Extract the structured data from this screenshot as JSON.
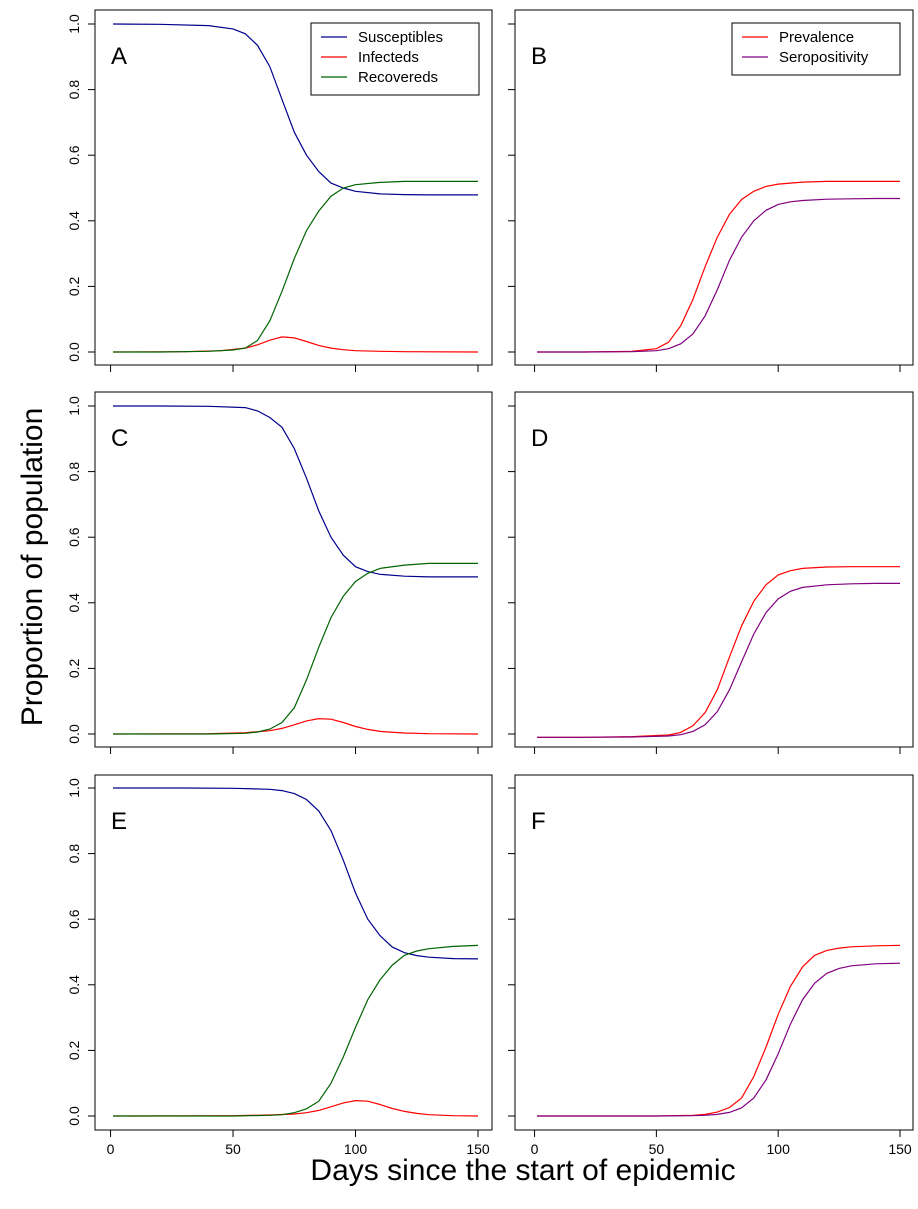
{
  "figure": {
    "xlabel": "Days since the start of epidemic",
    "ylabel": "Proportion of population"
  },
  "colors": {
    "susceptibles": "#00008b",
    "infecteds": "#ff0000",
    "recovereds": "#006400",
    "prevalence": "#ff0000",
    "seropositivity": "#800080"
  },
  "chart_data": [
    {
      "type": "line",
      "letter": "A",
      "xlim": [
        1,
        150
      ],
      "ylim": [
        0,
        1
      ],
      "xticks": [
        0,
        50,
        100,
        150
      ],
      "yticks": [
        0,
        0.2,
        0.4,
        0.6,
        0.8,
        1
      ],
      "xtick_labels": [],
      "ytick_labels": [
        "0.0",
        "0.2",
        "0.4",
        "0.6",
        "0.8",
        "1.0"
      ],
      "legend": "top-right",
      "series": [
        {
          "name": "Susceptibles",
          "key": "susceptibles",
          "x": [
            1,
            20,
            40,
            50,
            55,
            60,
            65,
            70,
            75,
            80,
            85,
            90,
            95,
            100,
            110,
            120,
            130,
            140,
            150
          ],
          "y": [
            1.0,
            0.999,
            0.995,
            0.985,
            0.97,
            0.935,
            0.87,
            0.77,
            0.67,
            0.6,
            0.55,
            0.515,
            0.5,
            0.49,
            0.482,
            0.48,
            0.479,
            0.479,
            0.479
          ]
        },
        {
          "name": "Infecteds",
          "key": "infecteds",
          "x": [
            1,
            30,
            45,
            55,
            60,
            65,
            70,
            75,
            80,
            85,
            90,
            95,
            100,
            110,
            120,
            150
          ],
          "y": [
            0,
            0.001,
            0.004,
            0.012,
            0.022,
            0.036,
            0.046,
            0.043,
            0.032,
            0.02,
            0.012,
            0.007,
            0.004,
            0.002,
            0.001,
            0
          ]
        },
        {
          "name": "Recovereds",
          "key": "recovereds",
          "x": [
            1,
            20,
            40,
            50,
            55,
            60,
            65,
            70,
            75,
            80,
            85,
            90,
            95,
            100,
            110,
            120,
            130,
            140,
            150
          ],
          "y": [
            0,
            0.0,
            0.002,
            0.006,
            0.012,
            0.035,
            0.095,
            0.185,
            0.285,
            0.37,
            0.43,
            0.475,
            0.5,
            0.51,
            0.517,
            0.52,
            0.52,
            0.52,
            0.52
          ]
        }
      ]
    },
    {
      "type": "line",
      "letter": "B",
      "xlim": [
        1,
        150
      ],
      "ylim": [
        0,
        1
      ],
      "xticks": [
        0,
        50,
        100,
        150
      ],
      "yticks": [
        0,
        0.2,
        0.4,
        0.6,
        0.8,
        1
      ],
      "xtick_labels": [],
      "ytick_labels": [],
      "legend": "top-right",
      "series": [
        {
          "name": "Prevalence",
          "key": "prevalence",
          "x": [
            1,
            20,
            40,
            50,
            55,
            60,
            65,
            70,
            75,
            80,
            85,
            90,
            95,
            100,
            110,
            120,
            130,
            140,
            150
          ],
          "y": [
            0,
            0.0,
            0.002,
            0.01,
            0.03,
            0.08,
            0.16,
            0.26,
            0.35,
            0.42,
            0.465,
            0.49,
            0.505,
            0.512,
            0.518,
            0.52,
            0.52,
            0.52,
            0.52
          ]
        },
        {
          "name": "Seropositivity",
          "key": "seropositivity",
          "x": [
            1,
            20,
            40,
            50,
            55,
            60,
            65,
            70,
            75,
            80,
            85,
            90,
            95,
            100,
            105,
            110,
            120,
            130,
            140,
            150
          ],
          "y": [
            0,
            0.0,
            0.001,
            0.004,
            0.01,
            0.025,
            0.055,
            0.11,
            0.19,
            0.28,
            0.35,
            0.4,
            0.432,
            0.45,
            0.458,
            0.462,
            0.466,
            0.467,
            0.468,
            0.468
          ]
        }
      ]
    },
    {
      "type": "line",
      "letter": "C",
      "xlim": [
        1,
        150
      ],
      "ylim": [
        0,
        1
      ],
      "xticks": [
        0,
        50,
        100,
        150
      ],
      "yticks": [
        0,
        0.2,
        0.4,
        0.6,
        0.8,
        1
      ],
      "xtick_labels": [],
      "ytick_labels": [
        "0.0",
        "0.2",
        "0.4",
        "0.6",
        "0.8",
        "1.0"
      ],
      "legend": "none",
      "series": [
        {
          "name": "",
          "key": "susceptibles",
          "x": [
            1,
            20,
            40,
            55,
            60,
            65,
            70,
            75,
            80,
            85,
            90,
            95,
            100,
            105,
            110,
            120,
            130,
            140,
            150
          ],
          "y": [
            1.0,
            1.0,
            0.999,
            0.995,
            0.985,
            0.965,
            0.935,
            0.87,
            0.78,
            0.68,
            0.6,
            0.545,
            0.51,
            0.495,
            0.487,
            0.481,
            0.479,
            0.479,
            0.479
          ]
        },
        {
          "name": "",
          "key": "infecteds",
          "x": [
            1,
            40,
            55,
            65,
            70,
            75,
            80,
            85,
            90,
            95,
            100,
            105,
            110,
            120,
            130,
            150
          ],
          "y": [
            0,
            0.001,
            0.004,
            0.01,
            0.017,
            0.028,
            0.04,
            0.047,
            0.045,
            0.035,
            0.023,
            0.014,
            0.008,
            0.003,
            0.001,
            0
          ]
        },
        {
          "name": "",
          "key": "recovereds",
          "x": [
            1,
            20,
            40,
            55,
            60,
            65,
            70,
            75,
            80,
            85,
            90,
            95,
            100,
            105,
            110,
            120,
            130,
            140,
            150
          ],
          "y": [
            0,
            0.0,
            0.0,
            0.002,
            0.006,
            0.015,
            0.035,
            0.08,
            0.165,
            0.265,
            0.355,
            0.42,
            0.465,
            0.49,
            0.505,
            0.515,
            0.52,
            0.52,
            0.52
          ]
        }
      ]
    },
    {
      "type": "line",
      "letter": "D",
      "xlim": [
        1,
        150
      ],
      "ylim": [
        -0.01,
        1
      ],
      "xticks": [
        0,
        50,
        100,
        150
      ],
      "yticks": [
        0,
        0.2,
        0.4,
        0.6,
        0.8,
        1
      ],
      "xtick_labels": [],
      "ytick_labels": [],
      "legend": "none",
      "series": [
        {
          "name": "",
          "key": "prevalence",
          "x": [
            1,
            20,
            40,
            55,
            60,
            65,
            70,
            75,
            80,
            85,
            90,
            95,
            100,
            105,
            110,
            120,
            130,
            140,
            150
          ],
          "y": [
            -0.01,
            -0.01,
            -0.008,
            -0.003,
            0.005,
            0.025,
            0.065,
            0.135,
            0.235,
            0.33,
            0.405,
            0.455,
            0.485,
            0.498,
            0.505,
            0.509,
            0.51,
            0.51,
            0.51
          ]
        },
        {
          "name": "",
          "key": "seropositivity",
          "x": [
            1,
            20,
            40,
            55,
            60,
            65,
            70,
            75,
            80,
            85,
            90,
            95,
            100,
            105,
            110,
            120,
            130,
            140,
            150
          ],
          "y": [
            -0.01,
            -0.01,
            -0.009,
            -0.006,
            -0.002,
            0.008,
            0.028,
            0.068,
            0.135,
            0.22,
            0.305,
            0.37,
            0.412,
            0.435,
            0.447,
            0.455,
            0.458,
            0.459,
            0.459
          ]
        }
      ]
    },
    {
      "type": "line",
      "letter": "E",
      "xlim": [
        1,
        150
      ],
      "ylim": [
        0,
        1
      ],
      "xticks": [
        0,
        50,
        100,
        150
      ],
      "yticks": [
        0,
        0.2,
        0.4,
        0.6,
        0.8,
        1
      ],
      "xtick_labels": [
        "0",
        "50",
        "100",
        "150"
      ],
      "ytick_labels": [
        "0.0",
        "0.2",
        "0.4",
        "0.6",
        "0.8",
        "1.0"
      ],
      "legend": "none",
      "series": [
        {
          "name": "",
          "key": "susceptibles",
          "x": [
            1,
            30,
            50,
            65,
            70,
            75,
            80,
            85,
            90,
            95,
            100,
            105,
            110,
            115,
            120,
            125,
            130,
            140,
            150
          ],
          "y": [
            1.0,
            1.0,
            0.999,
            0.996,
            0.992,
            0.983,
            0.965,
            0.93,
            0.87,
            0.78,
            0.68,
            0.6,
            0.55,
            0.515,
            0.498,
            0.489,
            0.484,
            0.48,
            0.479
          ]
        },
        {
          "name": "",
          "key": "infecteds",
          "x": [
            1,
            50,
            65,
            75,
            80,
            85,
            90,
            95,
            100,
            105,
            110,
            115,
            120,
            125,
            130,
            140,
            150
          ],
          "y": [
            0,
            0.001,
            0.003,
            0.006,
            0.01,
            0.017,
            0.028,
            0.04,
            0.047,
            0.045,
            0.035,
            0.023,
            0.014,
            0.008,
            0.004,
            0.001,
            0
          ]
        },
        {
          "name": "",
          "key": "recovereds",
          "x": [
            1,
            30,
            50,
            65,
            70,
            75,
            80,
            85,
            90,
            95,
            100,
            105,
            110,
            115,
            120,
            125,
            130,
            140,
            150
          ],
          "y": [
            0,
            0.0,
            0.0,
            0.002,
            0.004,
            0.01,
            0.022,
            0.045,
            0.1,
            0.18,
            0.27,
            0.355,
            0.415,
            0.46,
            0.49,
            0.503,
            0.51,
            0.517,
            0.52
          ]
        }
      ]
    },
    {
      "type": "line",
      "letter": "F",
      "xlim": [
        1,
        150
      ],
      "ylim": [
        0,
        1
      ],
      "xticks": [
        0,
        50,
        100,
        150
      ],
      "yticks": [
        0,
        0.2,
        0.4,
        0.6,
        0.8,
        1
      ],
      "xtick_labels": [
        "0",
        "50",
        "100",
        "150"
      ],
      "ytick_labels": [],
      "legend": "none",
      "series": [
        {
          "name": "",
          "key": "prevalence",
          "x": [
            1,
            30,
            50,
            65,
            70,
            75,
            80,
            85,
            90,
            95,
            100,
            105,
            110,
            115,
            120,
            125,
            130,
            140,
            150
          ],
          "y": [
            0,
            0.0,
            0.0,
            0.002,
            0.005,
            0.012,
            0.026,
            0.055,
            0.12,
            0.21,
            0.31,
            0.395,
            0.455,
            0.49,
            0.505,
            0.512,
            0.516,
            0.519,
            0.52
          ]
        },
        {
          "name": "",
          "key": "seropositivity",
          "x": [
            1,
            30,
            50,
            65,
            70,
            75,
            80,
            85,
            90,
            95,
            100,
            105,
            110,
            115,
            120,
            125,
            130,
            140,
            150
          ],
          "y": [
            0,
            0.0,
            0.0,
            0.001,
            0.002,
            0.005,
            0.011,
            0.025,
            0.055,
            0.11,
            0.19,
            0.28,
            0.355,
            0.405,
            0.435,
            0.45,
            0.458,
            0.464,
            0.466
          ]
        }
      ]
    }
  ]
}
